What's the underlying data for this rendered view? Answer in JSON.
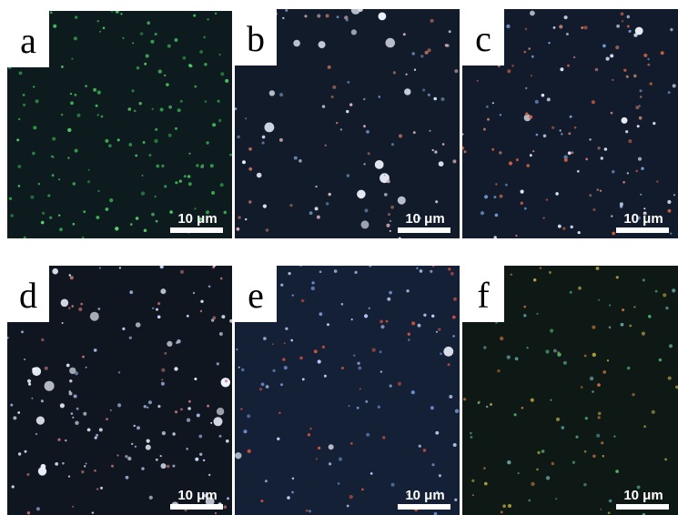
{
  "panels": [
    {
      "label": "a",
      "scale_bar": "10 μm"
    },
    {
      "label": "b",
      "scale_bar": "10 μm"
    },
    {
      "label": "c",
      "scale_bar": "10 μm"
    },
    {
      "label": "d",
      "scale_bar": "10 μm"
    },
    {
      "label": "e",
      "scale_bar": "10 μm"
    },
    {
      "label": "f",
      "scale_bar": "10 μm"
    }
  ]
}
